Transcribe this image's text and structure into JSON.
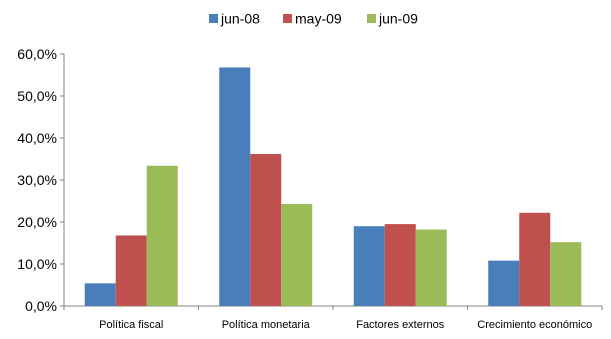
{
  "chart_data": {
    "type": "bar",
    "title": "",
    "xlabel": "",
    "ylabel": "",
    "categories": [
      "Política fiscal",
      "Política monetaria",
      "Factores externos",
      "Crecimiento económico"
    ],
    "series": [
      {
        "name": "jun-08",
        "color": "#4a7ebb",
        "values": [
          5.4,
          56.8,
          19.0,
          10.8
        ]
      },
      {
        "name": "may-09",
        "color": "#c0504d",
        "values": [
          16.8,
          36.2,
          19.5,
          22.2
        ]
      },
      {
        "name": "jun-09",
        "color": "#9bbb59",
        "values": [
          33.4,
          24.3,
          18.2,
          15.2
        ]
      }
    ],
    "ylim": [
      0,
      60
    ],
    "yticks": [
      0,
      10,
      20,
      30,
      40,
      50,
      60
    ],
    "ytick_labels": [
      "0,0%",
      "10,0%",
      "20,0%",
      "30,0%",
      "40,0%",
      "50,0%",
      "60,0%"
    ],
    "grid": false,
    "legend_position": "top"
  }
}
